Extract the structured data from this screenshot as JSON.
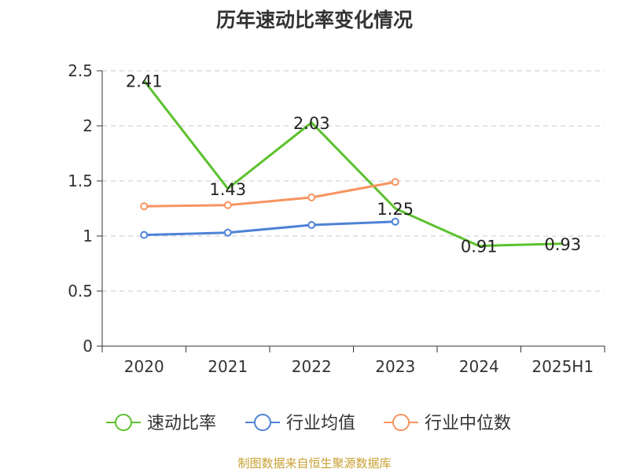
{
  "chart_data": {
    "type": "line",
    "title": "历年速动比率变化情况",
    "categories": [
      "2020",
      "2021",
      "2022",
      "2023",
      "2024",
      "2025H1"
    ],
    "ylim": [
      0,
      2.5
    ],
    "yticks": [
      0,
      0.5,
      1,
      1.5,
      2,
      2.5
    ],
    "ytick_labels": [
      "0",
      "0.5",
      "1",
      "1.5",
      "2",
      "2.5"
    ],
    "grid": true,
    "legend_position": "bottom",
    "series": [
      {
        "name": "速动比率",
        "color": "#5cc12e",
        "values": [
          2.41,
          1.43,
          2.03,
          1.25,
          0.91,
          0.93
        ],
        "labels": [
          "2.41",
          "1.43",
          "2.03",
          "1.25",
          "0.91",
          "0.93"
        ],
        "show_markers": false
      },
      {
        "name": "行业均值",
        "color": "#4f82d6",
        "values": [
          1.01,
          1.03,
          1.1,
          1.13,
          null,
          null
        ],
        "show_markers": true
      },
      {
        "name": "行业中位数",
        "color": "#f79460",
        "values": [
          1.27,
          1.28,
          1.35,
          1.49,
          null,
          null
        ],
        "show_markers": true
      }
    ]
  },
  "source_note": "制图数据来自恒生聚源数据库"
}
